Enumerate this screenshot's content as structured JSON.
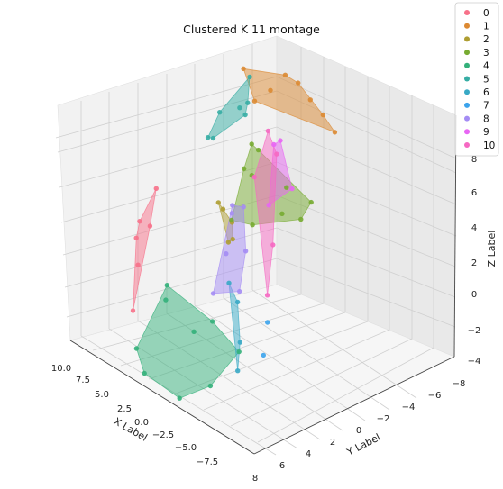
{
  "chart_data": {
    "type": "scatter",
    "title": "Clustered K 11 montage",
    "xlabel": "X Label",
    "ylabel": "Y Label",
    "zlabel": "Z Label",
    "xlim": [
      -8,
      10
    ],
    "ylim": [
      -8,
      8
    ],
    "zlim": [
      -4,
      8
    ],
    "x_ticks": [
      "10.0",
      "7.5",
      "5.0",
      "2.5",
      "0.0",
      "−2.5",
      "−5.0",
      "−7.5"
    ],
    "y_ticks": [
      "8",
      "6",
      "4",
      "2",
      "0",
      "−2",
      "−4",
      "−6",
      "−8"
    ],
    "z_ticks": [
      "−4",
      "−2",
      "0",
      "2",
      "4",
      "6",
      "8"
    ],
    "grid": true,
    "legend_position": "top-right",
    "series": [
      {
        "name": "0",
        "color": "#f77189",
        "x": [
          -7.6,
          -8.0,
          -6.8,
          -5.8,
          -8.2,
          -7.4
        ],
        "y": [
          2.0,
          1.2,
          3.6,
          4.8,
          2.6,
          3.0
        ],
        "z": [
          0.0,
          1.5,
          -1.2,
          -2.8,
          -0.6,
          0.6
        ]
      },
      {
        "name": "1",
        "color": "#dc8932",
        "x": [
          -1.2,
          -3.0,
          -4.5,
          -6.5,
          -2.0,
          -5.2,
          -6.0,
          -3.6
        ],
        "y": [
          -7.5,
          -7.0,
          -6.2,
          -4.5,
          -7.2,
          -5.6,
          -5.0,
          -6.5
        ],
        "z": [
          3.8,
          5.0,
          6.0,
          6.2,
          4.5,
          5.2,
          4.6,
          5.8
        ]
      },
      {
        "name": "2",
        "color": "#ae9d31",
        "x": [
          -3.5,
          -4.2,
          -5.0,
          -4.6,
          -5.6
        ],
        "y": [
          -1.2,
          -1.5,
          -2.5,
          -1.0,
          -2.2
        ],
        "z": [
          0.5,
          -0.8,
          -1.2,
          1.2,
          0.2
        ]
      },
      {
        "name": "3",
        "color": "#77ab31",
        "x": [
          0.2,
          -2.2,
          -4.8,
          -6.5,
          -3.0,
          -1.5,
          -5.5,
          0.8,
          -0.8,
          -3.8
        ],
        "y": [
          -2.5,
          -2.2,
          -3.8,
          -4.6,
          -4.8,
          -1.2,
          -2.8,
          -4.0,
          -4.5,
          -3.0
        ],
        "z": [
          3.0,
          4.2,
          3.2,
          1.2,
          0.0,
          1.0,
          -0.5,
          2.0,
          0.5,
          2.2
        ]
      },
      {
        "name": "4",
        "color": "#33b07a",
        "x": [
          3.5,
          1.0,
          -2.5,
          -4.8,
          2.2,
          -1.0,
          4.2,
          0.0,
          -3.0
        ],
        "y": [
          6.2,
          5.5,
          4.8,
          3.0,
          7.6,
          7.8,
          4.5,
          3.2,
          6.8
        ],
        "z": [
          -3.2,
          -1.5,
          -0.5,
          -2.5,
          -3.8,
          -3.5,
          -1.8,
          -2.0,
          -3.2
        ]
      },
      {
        "name": "5",
        "color": "#36ada4",
        "x": [
          -1.8,
          -2.6,
          -3.2,
          -4.0,
          -2.0,
          -4.8,
          -3.0
        ],
        "y": [
          -0.8,
          0.6,
          -1.5,
          -2.8,
          1.6,
          -3.6,
          1.2
        ],
        "z": [
          6.5,
          6.8,
          6.2,
          5.8,
          6.0,
          6.6,
          5.6
        ]
      },
      {
        "name": "6",
        "color": "#38a9c5",
        "x": [
          6.6,
          5.6,
          7.6,
          6.2
        ],
        "y": [
          6.4,
          5.8,
          7.4,
          7.0
        ],
        "z": [
          0.0,
          1.5,
          -0.8,
          3.0
        ]
      },
      {
        "name": "7",
        "color": "#3ba3ec",
        "x": [
          7.8,
          8.4
        ],
        "y": [
          5.2,
          6.0
        ],
        "z": [
          1.0,
          -0.2
        ]
      },
      {
        "name": "8",
        "color": "#a48cf4",
        "x": [
          3.2,
          1.5,
          -0.2,
          2.8,
          4.2,
          0.8,
          2.0
        ],
        "y": [
          3.2,
          2.0,
          1.5,
          4.0,
          4.5,
          2.8,
          4.8
        ],
        "z": [
          2.5,
          3.8,
          3.2,
          4.5,
          1.2,
          1.5,
          0.5
        ]
      },
      {
        "name": "9",
        "color": "#e866f4",
        "x": [
          5.0,
          2.0,
          4.2,
          1.0
        ],
        "y": [
          1.0,
          -0.5,
          2.2,
          -0.8
        ],
        "z": [
          5.5,
          6.5,
          4.8,
          5.9
        ]
      },
      {
        "name": "10",
        "color": "#f668c2",
        "x": [
          2.5,
          0.8,
          5.6,
          6.8,
          1.8
        ],
        "y": [
          0.2,
          -0.5,
          3.0,
          4.4,
          1.4
        ],
        "z": [
          6.2,
          6.6,
          3.5,
          1.8,
          5.2
        ]
      }
    ]
  }
}
